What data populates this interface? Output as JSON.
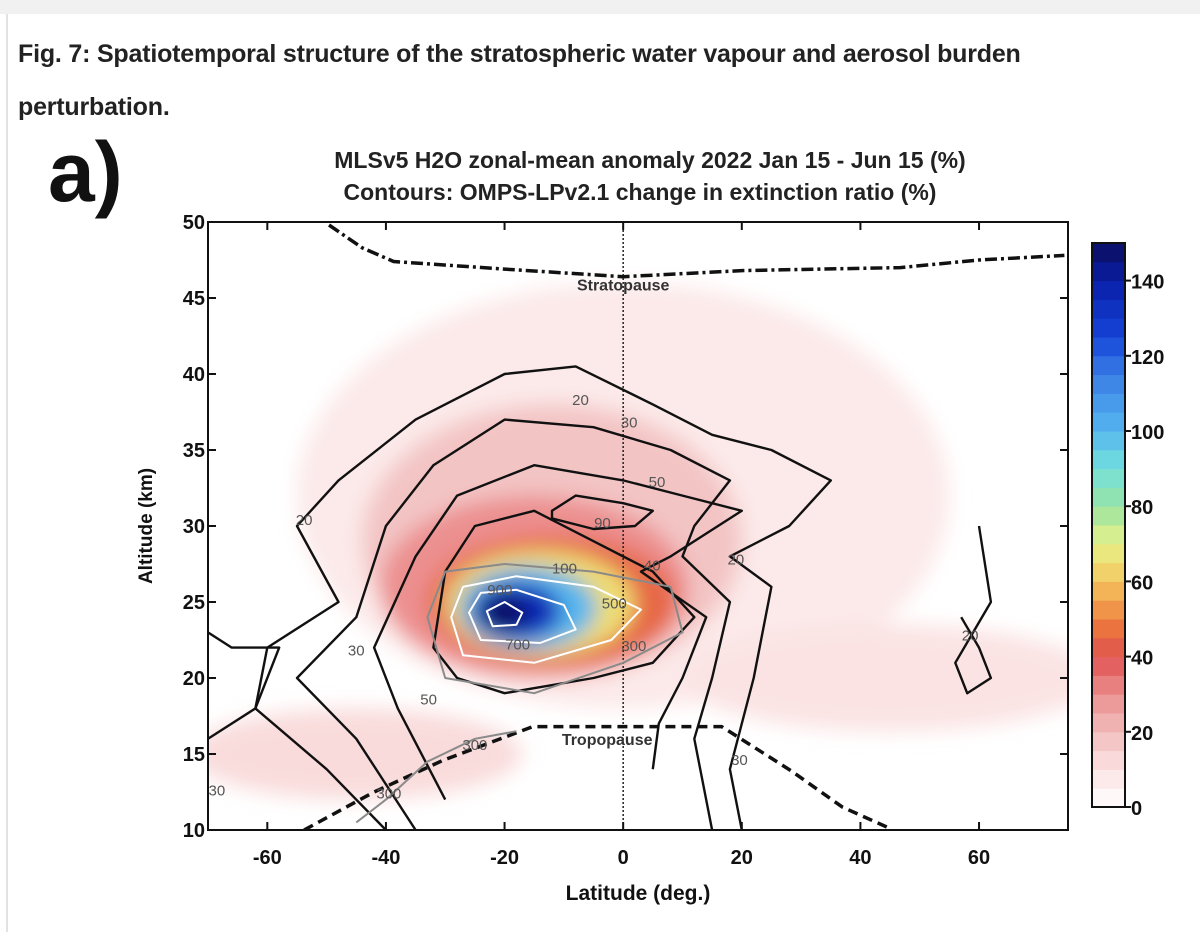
{
  "figure": {
    "title": "Fig. 7: Spatiotemporal structure of the stratospheric water vapour and aerosol burden perturbation.",
    "panel_label": "a)"
  },
  "chart_data": {
    "type": "heatmap",
    "title": "MLSv5 H2O zonal-mean anomaly 2022 Jan 15 - Jun 15 (%)",
    "subtitle": "Contours: OMPS-LPv2.1 change in extinction ratio (%)",
    "xlabel": "Latitude (deg.)",
    "ylabel": "Altitude (km)",
    "xlim": [
      -70,
      75
    ],
    "ylim": [
      10,
      50
    ],
    "xticks": [
      -60,
      -40,
      -20,
      0,
      20,
      40,
      60
    ],
    "yticks": [
      10,
      15,
      20,
      25,
      30,
      35,
      40,
      45,
      50
    ],
    "colorbar": {
      "min": 0,
      "max": 150,
      "step": 5,
      "ticks": [
        0,
        20,
        40,
        60,
        80,
        100,
        120,
        140
      ],
      "placement": "right"
    },
    "colormap_stops": [
      [
        0,
        "#ffffff"
      ],
      [
        10,
        "#fbe3e3"
      ],
      [
        20,
        "#f1bcbc"
      ],
      [
        30,
        "#ec8f8f"
      ],
      [
        40,
        "#e05252"
      ],
      [
        47,
        "#e9703e"
      ],
      [
        55,
        "#f2a44e"
      ],
      [
        62,
        "#f2d068"
      ],
      [
        70,
        "#e8f28a"
      ],
      [
        80,
        "#98e3a2"
      ],
      [
        90,
        "#74e0dc"
      ],
      [
        100,
        "#55b6ee"
      ],
      [
        115,
        "#3a7ee6"
      ],
      [
        125,
        "#1544d8"
      ],
      [
        140,
        "#0a1fa8"
      ],
      [
        150,
        "#0b0c5c"
      ]
    ],
    "anomaly_features": [
      {
        "lat": 0,
        "alt": 32,
        "lat_spread": 55,
        "alt_spread": 14,
        "value": 8
      },
      {
        "lat": 45,
        "alt": 20,
        "lat_spread": 35,
        "alt_spread": 3.5,
        "value": 10
      },
      {
        "lat": -45,
        "alt": 15,
        "lat_spread": 28,
        "alt_spread": 3,
        "value": 12
      },
      {
        "lat": -12,
        "alt": 29,
        "lat_spread": 32,
        "alt_spread": 9,
        "value": 18
      },
      {
        "lat": -15,
        "alt": 26,
        "lat_spread": 26,
        "alt_spread": 6,
        "value": 30
      },
      {
        "lat": -12,
        "alt": 25,
        "lat_spread": 21,
        "alt_spread": 4.4,
        "value": 45
      },
      {
        "lat": -14,
        "alt": 24.9,
        "lat_spread": 16,
        "alt_spread": 3.5,
        "value": 65
      },
      {
        "lat": -16,
        "alt": 24.6,
        "lat_spread": 11.5,
        "alt_spread": 2.7,
        "value": 100
      },
      {
        "lat": -18,
        "alt": 24.4,
        "lat_spread": 7.5,
        "alt_spread": 1.9,
        "value": 135
      },
      {
        "lat": -20,
        "alt": 24.3,
        "lat_spread": 4,
        "alt_spread": 1.1,
        "value": 150
      }
    ],
    "contours": [
      {
        "level": 20,
        "color": "black",
        "points": [
          [
            -40,
            10
          ],
          [
            -50,
            14
          ],
          [
            -62,
            18
          ],
          [
            -60,
            22
          ],
          [
            -48,
            25
          ],
          [
            -55,
            30
          ],
          [
            -48,
            33
          ],
          [
            -35,
            37
          ],
          [
            -20,
            40
          ],
          [
            -8,
            40.5
          ],
          [
            5,
            38
          ],
          [
            15,
            36
          ],
          [
            25,
            35
          ],
          [
            35,
            33
          ],
          [
            28,
            30
          ],
          [
            18,
            28
          ],
          [
            25,
            26
          ],
          [
            22,
            20
          ],
          [
            18,
            14
          ],
          [
            20,
            10
          ]
        ]
      },
      {
        "level": 30,
        "color": "black",
        "points": [
          [
            -35,
            10
          ],
          [
            -45,
            16
          ],
          [
            -55,
            20
          ],
          [
            -45,
            24
          ],
          [
            -40,
            30
          ],
          [
            -32,
            34
          ],
          [
            -20,
            37
          ],
          [
            -5,
            36.5
          ],
          [
            8,
            35
          ],
          [
            18,
            33
          ],
          [
            12,
            30
          ],
          [
            10,
            28
          ],
          [
            18,
            25
          ],
          [
            15,
            20
          ],
          [
            12,
            16
          ],
          [
            15,
            10
          ]
        ]
      },
      {
        "level": 50,
        "color": "black",
        "points": [
          [
            -30,
            12
          ],
          [
            -38,
            18
          ],
          [
            -42,
            22
          ],
          [
            -35,
            28
          ],
          [
            -28,
            32
          ],
          [
            -15,
            34
          ],
          [
            0,
            33
          ],
          [
            10,
            32
          ],
          [
            20,
            31
          ],
          [
            8,
            28
          ],
          [
            3,
            27
          ],
          [
            14,
            24
          ],
          [
            10,
            20
          ],
          [
            6,
            17
          ],
          [
            5,
            14
          ]
        ]
      },
      {
        "level": 100,
        "color": "black",
        "closed": true,
        "points": [
          [
            -32,
            22
          ],
          [
            -30,
            27
          ],
          [
            -25,
            30
          ],
          [
            -15,
            31
          ],
          [
            -5,
            29
          ],
          [
            5,
            27
          ],
          [
            12,
            24
          ],
          [
            5,
            21
          ],
          [
            -5,
            20
          ],
          [
            -20,
            19
          ],
          [
            -28,
            20
          ]
        ]
      },
      {
        "level": 90,
        "color": "black",
        "closed": true,
        "points": [
          [
            -12,
            31
          ],
          [
            -8,
            32
          ],
          [
            0,
            31.5
          ],
          [
            5,
            31
          ],
          [
            2,
            30
          ],
          [
            -5,
            29.8
          ],
          [
            -12,
            30.5
          ]
        ]
      },
      {
        "level": 20,
        "color": "black",
        "points": [
          [
            -70,
            16
          ],
          [
            -62,
            18
          ],
          [
            -58,
            22
          ],
          [
            -66,
            22
          ],
          [
            -70,
            23
          ]
        ]
      },
      {
        "level": 20,
        "color": "black",
        "points": [
          [
            57,
            24
          ],
          [
            60,
            22
          ],
          [
            62,
            20
          ],
          [
            58,
            19
          ],
          [
            56,
            21
          ],
          [
            59,
            23
          ],
          [
            62,
            25
          ],
          [
            60,
            30
          ]
        ]
      },
      {
        "level": 300,
        "color": "gray",
        "closed": true,
        "points": [
          [
            -33,
            24
          ],
          [
            -30,
            20
          ],
          [
            -15,
            19
          ],
          [
            0,
            21
          ],
          [
            10,
            23
          ],
          [
            8,
            26
          ],
          [
            -5,
            27
          ],
          [
            -20,
            27.5
          ],
          [
            -30,
            27
          ]
        ]
      },
      {
        "level": 300,
        "color": "gray",
        "points": [
          [
            -45,
            10.5
          ],
          [
            -40,
            12
          ],
          [
            -33,
            14.5
          ],
          [
            -25,
            16
          ],
          [
            -18,
            16.5
          ]
        ]
      },
      {
        "level": 500,
        "color": "white",
        "closed": true,
        "points": [
          [
            -29,
            24
          ],
          [
            -27,
            21.5
          ],
          [
            -15,
            21
          ],
          [
            -2,
            22.5
          ],
          [
            3,
            24.5
          ],
          [
            -5,
            26
          ],
          [
            -18,
            26.7
          ],
          [
            -27,
            26
          ]
        ]
      },
      {
        "level": 700,
        "color": "white",
        "closed": true,
        "points": [
          [
            -26,
            24.3
          ],
          [
            -24,
            22.5
          ],
          [
            -14,
            22.3
          ],
          [
            -8,
            23.2
          ],
          [
            -10,
            24.8
          ],
          [
            -18,
            25.8
          ],
          [
            -24,
            25.6
          ]
        ]
      },
      {
        "level": 900,
        "color": "white",
        "closed": true,
        "points": [
          [
            -23,
            24.4
          ],
          [
            -22,
            23.4
          ],
          [
            -18,
            23.5
          ],
          [
            -17,
            24.3
          ],
          [
            -20,
            25
          ]
        ]
      }
    ],
    "contour_labels": [
      {
        "text": "20",
        "lat": -7.2,
        "alt": 38.3
      },
      {
        "text": "30",
        "lat": 1,
        "alt": 36.8
      },
      {
        "text": "50",
        "lat": 5.7,
        "alt": 32.9
      },
      {
        "text": "90",
        "lat": -3.5,
        "alt": 30.2
      },
      {
        "text": "100",
        "lat": -9.9,
        "alt": 27.2
      },
      {
        "text": "40",
        "lat": 4.9,
        "alt": 27.4
      },
      {
        "text": "20",
        "lat": 19,
        "alt": 27.8
      },
      {
        "text": "900",
        "lat": -20.8,
        "alt": 25.8
      },
      {
        "text": "500",
        "lat": -1.5,
        "alt": 24.9
      },
      {
        "text": "700",
        "lat": -17.8,
        "alt": 22.2
      },
      {
        "text": "300",
        "lat": 1.8,
        "alt": 22.1
      },
      {
        "text": "20",
        "lat": -53.8,
        "alt": 30.4
      },
      {
        "text": "30",
        "lat": -45,
        "alt": 21.8
      },
      {
        "text": "50",
        "lat": -32.8,
        "alt": 18.6
      },
      {
        "text": "300",
        "lat": -25,
        "alt": 15.6
      },
      {
        "text": "300",
        "lat": -39.5,
        "alt": 12.4
      },
      {
        "text": "30",
        "lat": -68.5,
        "alt": 12.6
      },
      {
        "text": "20",
        "lat": 58.5,
        "alt": 22.8
      },
      {
        "text": "30",
        "lat": 19.6,
        "alt": 14.6
      }
    ],
    "reference_lines": {
      "equator": {
        "lat": 0
      },
      "stratopause": {
        "label": "Stratopause",
        "label_lat": 0,
        "label_alt": 45.5,
        "points": [
          [
            -49.6,
            49.8
          ],
          [
            -44,
            48.3
          ],
          [
            -38.7,
            47.4
          ],
          [
            -20,
            46.9
          ],
          [
            0,
            46.4
          ],
          [
            20,
            46.8
          ],
          [
            46.7,
            47
          ],
          [
            60,
            47.5
          ],
          [
            74.4,
            47.8
          ]
        ]
      },
      "tropopause": {
        "label": "Tropopause",
        "label_lat": -2.7,
        "label_alt": 15.6,
        "points": [
          [
            -53.8,
            10
          ],
          [
            -42,
            12.5
          ],
          [
            -30.3,
            14.6
          ],
          [
            -15.2,
            16.8
          ],
          [
            0,
            16.8
          ],
          [
            16.6,
            16.8
          ],
          [
            28.3,
            13.9
          ],
          [
            37,
            11.5
          ],
          [
            45,
            10.1
          ]
        ]
      }
    }
  }
}
